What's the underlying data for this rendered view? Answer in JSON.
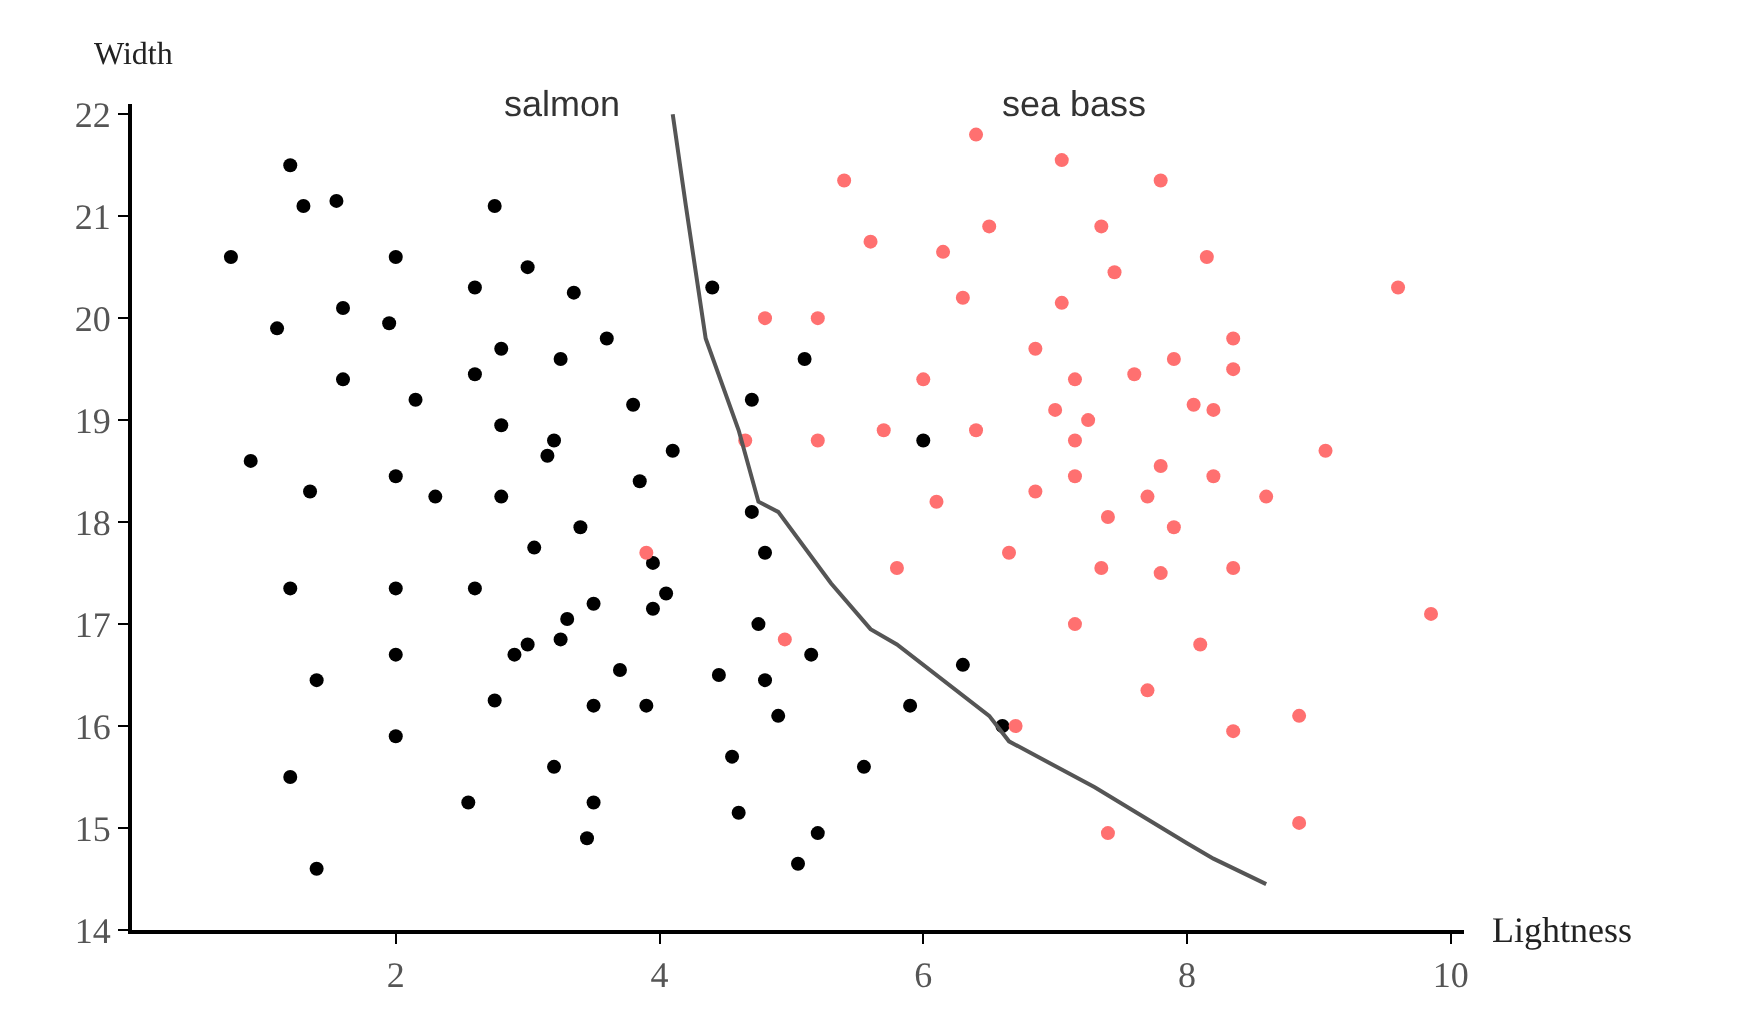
{
  "chart_data": {
    "type": "scatter",
    "xlabel": "Lightness",
    "ylabel": "Width",
    "xlim": [
      0,
      10.1
    ],
    "ylim": [
      14,
      22.1
    ],
    "xticks": [
      2,
      4,
      6,
      8,
      10
    ],
    "yticks": [
      14,
      15,
      16,
      17,
      18,
      19,
      20,
      21,
      22
    ],
    "legend": false,
    "marker": "circle",
    "series": [
      {
        "name": "salmon",
        "color": "#000000",
        "x": [
          1.2,
          1.3,
          1.55,
          0.75,
          2.0,
          2.75,
          2.6,
          3.0,
          3.35,
          1.1,
          1.6,
          1.95,
          1.6,
          2.15,
          2.6,
          2.8,
          3.25,
          3.6,
          3.8,
          2.8,
          3.2,
          3.15,
          4.1,
          0.9,
          1.35,
          2.0,
          2.3,
          2.8,
          3.85,
          3.4,
          3.05,
          1.2,
          2.0,
          2.6,
          3.95,
          4.05,
          3.95,
          3.5,
          3.3,
          3.25,
          3.0,
          2.9,
          2.0,
          1.4,
          2.75,
          3.5,
          3.7,
          3.9,
          2.0,
          1.2,
          3.2,
          2.55,
          3.5,
          3.45,
          1.4,
          4.4,
          5.1,
          4.7,
          6.0,
          4.7,
          4.8,
          4.75,
          5.15,
          4.45,
          4.8,
          4.9,
          5.9,
          6.3,
          6.6,
          4.55,
          5.55,
          4.6,
          5.2,
          5.05
        ],
        "values": [
          21.5,
          21.1,
          21.15,
          20.6,
          20.6,
          21.1,
          20.3,
          20.5,
          20.25,
          19.9,
          20.1,
          19.95,
          19.4,
          19.2,
          19.45,
          19.7,
          19.6,
          19.8,
          19.15,
          18.95,
          18.8,
          18.65,
          18.7,
          18.6,
          18.3,
          18.45,
          18.25,
          18.25,
          18.4,
          17.95,
          17.75,
          17.35,
          17.35,
          17.35,
          17.6,
          17.3,
          17.15,
          17.2,
          17.05,
          16.85,
          16.8,
          16.7,
          16.7,
          16.45,
          16.25,
          16.2,
          16.55,
          16.2,
          15.9,
          15.5,
          15.6,
          15.25,
          15.25,
          14.9,
          14.6,
          20.3,
          19.6,
          19.2,
          18.8,
          18.1,
          17.7,
          17.0,
          16.7,
          16.5,
          16.45,
          16.1,
          16.2,
          16.6,
          16.0,
          15.7,
          15.6,
          15.15,
          14.95,
          14.65
        ]
      },
      {
        "name": "sea bass",
        "color": "#ff7070",
        "x": [
          6.4,
          7.05,
          5.4,
          7.8,
          6.5,
          7.35,
          5.6,
          6.15,
          7.45,
          6.3,
          7.05,
          4.8,
          5.2,
          6.85,
          7.9,
          6.0,
          7.15,
          7.6,
          7.0,
          7.25,
          8.05,
          4.65,
          5.2,
          5.7,
          6.4,
          7.15,
          7.8,
          7.15,
          6.85,
          7.7,
          6.1,
          7.4,
          7.9,
          6.65,
          5.8,
          7.35,
          7.8,
          3.9,
          7.15,
          8.1,
          4.95,
          7.7,
          6.7,
          7.4,
          8.15,
          9.6,
          8.35,
          8.35,
          8.2,
          9.05,
          8.2,
          8.6,
          8.35,
          9.85,
          8.35,
          8.85,
          8.85
        ],
        "values": [
          21.8,
          21.55,
          21.35,
          21.35,
          20.9,
          20.9,
          20.75,
          20.65,
          20.45,
          20.2,
          20.15,
          20.0,
          20.0,
          19.7,
          19.6,
          19.4,
          19.4,
          19.45,
          19.1,
          19.0,
          19.15,
          18.8,
          18.8,
          18.9,
          18.9,
          18.8,
          18.55,
          18.45,
          18.3,
          18.25,
          18.2,
          18.05,
          17.95,
          17.7,
          17.55,
          17.55,
          17.5,
          17.7,
          17.0,
          16.8,
          16.85,
          16.35,
          16.0,
          14.95,
          20.6,
          20.3,
          19.8,
          19.5,
          19.1,
          18.7,
          18.45,
          18.25,
          17.55,
          17.1,
          15.95,
          16.1,
          15.05
        ]
      },
      {
        "type": "line",
        "color": "#555555",
        "marker": "none",
        "x": [
          4.1,
          4.2,
          4.35,
          4.6,
          4.75,
          4.9,
          5.3,
          5.6,
          5.8,
          6.5,
          6.65,
          7.3,
          8.0,
          8.2,
          8.6
        ],
        "values": [
          22.0,
          21.1,
          19.8,
          18.9,
          18.2,
          18.1,
          17.4,
          16.95,
          16.8,
          16.1,
          15.85,
          15.4,
          14.85,
          14.7,
          14.45
        ]
      }
    ]
  }
}
